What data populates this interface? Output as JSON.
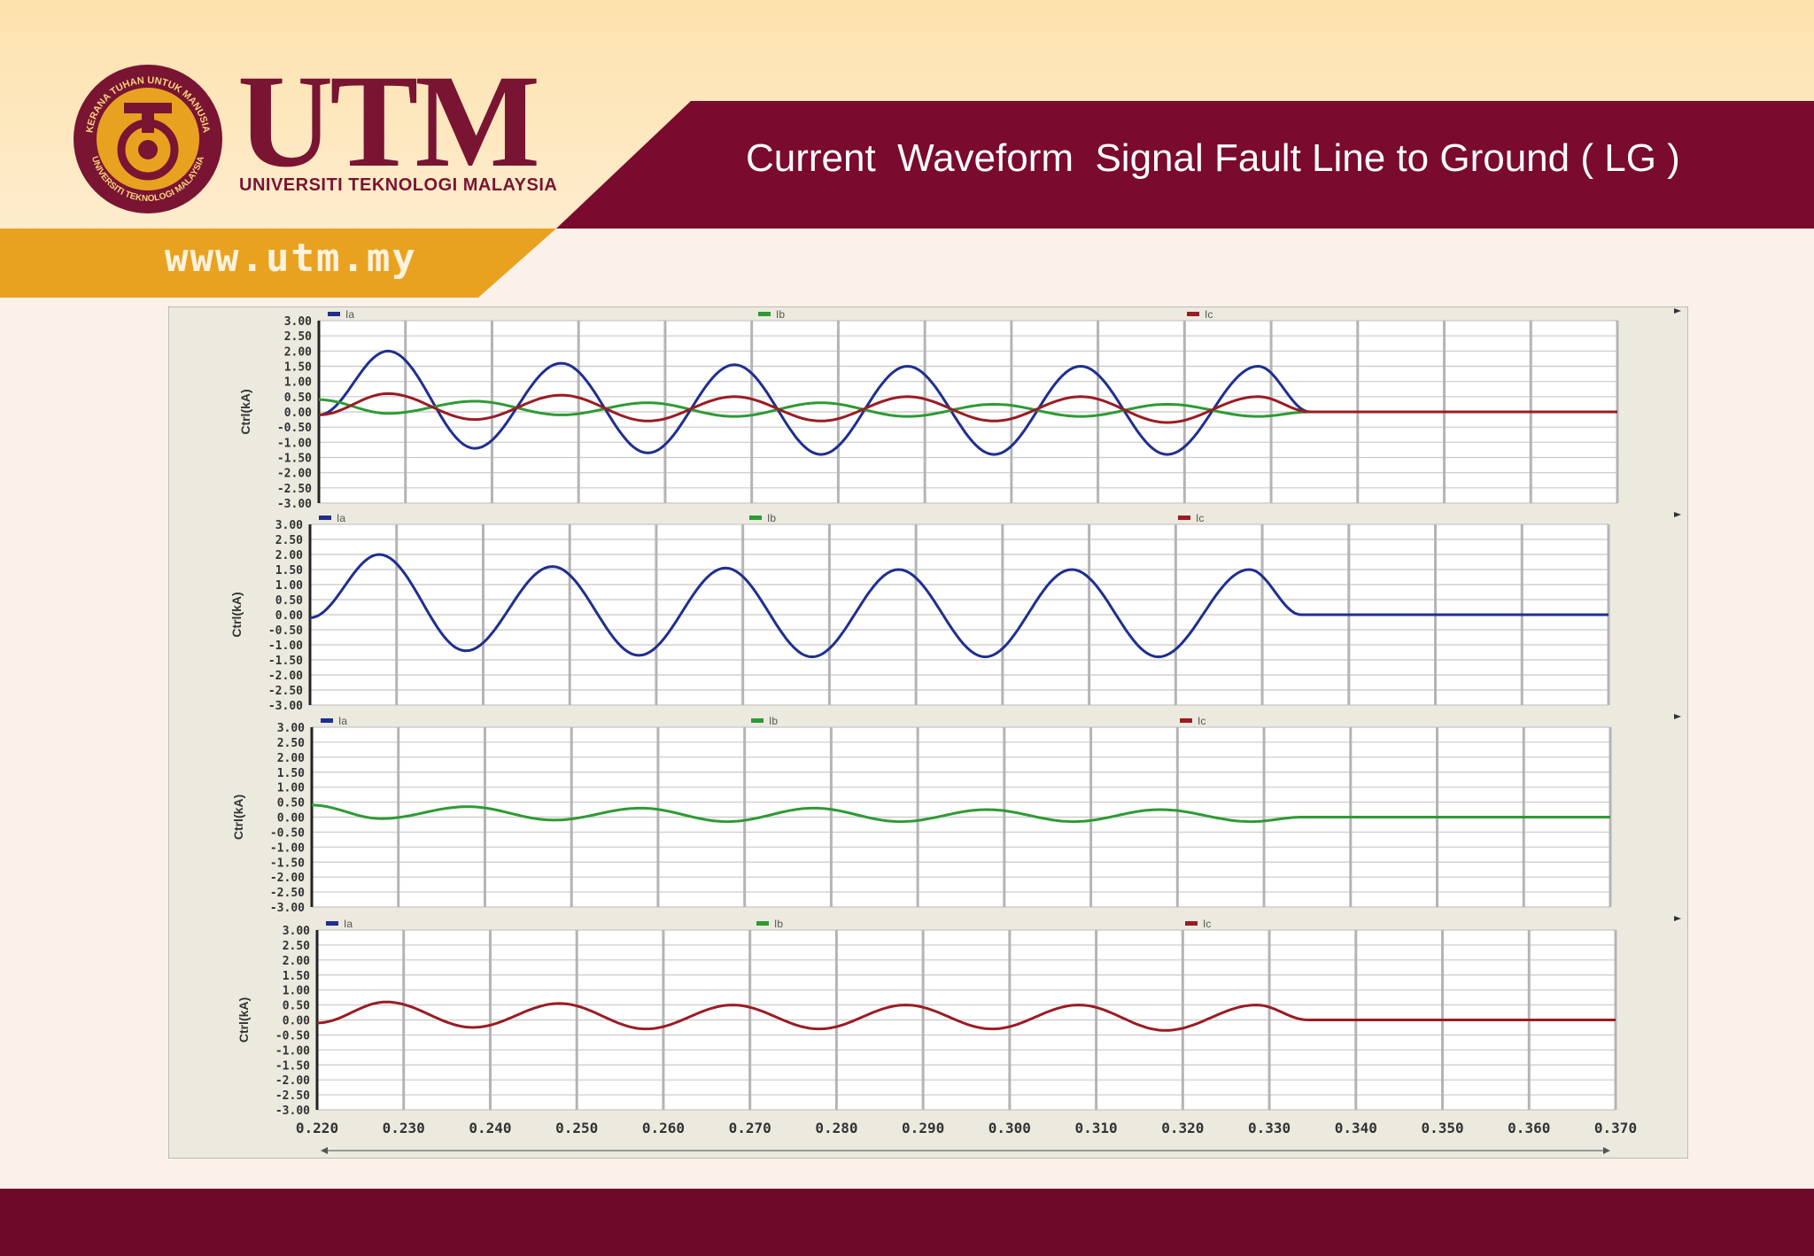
{
  "slide": {
    "title": "Current  Waveform  Signal Fault Line to Ground ( LG )",
    "brand_word": "UTM",
    "brand_sub": "UNIVERSITI TEKNOLOGI MALAYSIA",
    "seal_text_top": "KERANA TUHAN UNTUK MANUSIA",
    "seal_text_bottom": "UNIVERSITI TEKNOLOGI MALAYSIA",
    "url": "www.utm.my"
  },
  "colors": {
    "maroon": "#7a0a2e",
    "gold": "#e9a220",
    "cream": "#fde6b8",
    "ia": "#1f2f8f",
    "ib": "#2e9a34",
    "ic": "#9a1c24"
  },
  "chart_data": [
    {
      "type": "line",
      "ylabel": "Ctrl(kA)",
      "legend": [
        "Ia",
        "Ib",
        "Ic"
      ],
      "x_ticks": [],
      "y_ticks": [
        "3.00",
        "2.50",
        "2.00",
        "1.50",
        "1.00",
        "0.50",
        "0.00",
        "-0.50",
        "-1.00",
        "-1.50",
        "-2.00",
        "-2.50",
        "-3.00"
      ],
      "xlim": [
        0.22,
        0.37
      ],
      "ylim": [
        -3,
        3
      ],
      "grid": true,
      "legend_position": "top",
      "series": [
        {
          "name": "Ia",
          "color": "#1f2f8f",
          "x": [
            0.22,
            0.228,
            0.238,
            0.248,
            0.258,
            0.268,
            0.278,
            0.288,
            0.298,
            0.308,
            0.318,
            0.3285,
            0.3345,
            0.37
          ],
          "y": [
            -0.1,
            2.0,
            -1.2,
            1.6,
            -1.35,
            1.55,
            -1.4,
            1.5,
            -1.4,
            1.5,
            -1.4,
            1.5,
            0.0,
            0.0
          ]
        },
        {
          "name": "Ib",
          "color": "#2e9a34",
          "x": [
            0.22,
            0.228,
            0.238,
            0.248,
            0.258,
            0.268,
            0.278,
            0.288,
            0.298,
            0.308,
            0.318,
            0.3285,
            0.3345,
            0.37
          ],
          "y": [
            0.4,
            -0.05,
            0.35,
            -0.1,
            0.3,
            -0.15,
            0.3,
            -0.15,
            0.25,
            -0.15,
            0.25,
            -0.15,
            0.0,
            0.0
          ]
        },
        {
          "name": "Ic",
          "color": "#9a1c24",
          "x": [
            0.22,
            0.228,
            0.238,
            0.248,
            0.258,
            0.268,
            0.278,
            0.288,
            0.298,
            0.308,
            0.318,
            0.3285,
            0.3345,
            0.37
          ],
          "y": [
            -0.1,
            0.6,
            -0.25,
            0.55,
            -0.3,
            0.5,
            -0.3,
            0.5,
            -0.3,
            0.5,
            -0.35,
            0.5,
            0.0,
            0.0
          ]
        }
      ]
    },
    {
      "type": "line",
      "ylabel": "Ctrl(kA)",
      "legend": [
        "Ia",
        "Ib",
        "Ic"
      ],
      "x_ticks": [],
      "y_ticks": [
        "3.00",
        "2.50",
        "2.00",
        "1.50",
        "1.00",
        "0.50",
        "0.00",
        "-0.50",
        "-1.00",
        "-1.50",
        "-2.00",
        "-2.50",
        "-3.00"
      ],
      "xlim": [
        0.22,
        0.37
      ],
      "ylim": [
        -3,
        3
      ],
      "grid": true,
      "legend_position": "top",
      "series": [
        {
          "name": "Ia",
          "color": "#1f2f8f",
          "x": [
            0.22,
            0.228,
            0.238,
            0.248,
            0.258,
            0.268,
            0.278,
            0.288,
            0.298,
            0.308,
            0.318,
            0.3285,
            0.3345,
            0.37
          ],
          "y": [
            -0.1,
            2.0,
            -1.2,
            1.6,
            -1.35,
            1.55,
            -1.4,
            1.5,
            -1.4,
            1.5,
            -1.4,
            1.5,
            0.0,
            0.0
          ]
        }
      ]
    },
    {
      "type": "line",
      "ylabel": "Ctrl(kA)",
      "legend": [
        "Ia",
        "Ib",
        "Ic"
      ],
      "x_ticks": [],
      "y_ticks": [
        "3.00",
        "2.50",
        "2.00",
        "1.50",
        "1.00",
        "0.50",
        "0.00",
        "-0.50",
        "-1.00",
        "-1.50",
        "-2.00",
        "-2.50",
        "-3.00"
      ],
      "xlim": [
        0.22,
        0.37
      ],
      "ylim": [
        -3,
        3
      ],
      "grid": true,
      "legend_position": "top",
      "series": [
        {
          "name": "Ib",
          "color": "#2e9a34",
          "x": [
            0.22,
            0.228,
            0.238,
            0.248,
            0.258,
            0.268,
            0.278,
            0.288,
            0.298,
            0.308,
            0.318,
            0.3285,
            0.3345,
            0.37
          ],
          "y": [
            0.4,
            -0.05,
            0.35,
            -0.1,
            0.3,
            -0.15,
            0.3,
            -0.15,
            0.25,
            -0.15,
            0.25,
            -0.15,
            0.0,
            0.0
          ]
        }
      ]
    },
    {
      "type": "line",
      "ylabel": "Ctrl(kA)",
      "legend": [
        "Ia",
        "Ib",
        "Ic"
      ],
      "x_ticks": [
        "0.220",
        "0.230",
        "0.240",
        "0.250",
        "0.260",
        "0.270",
        "0.280",
        "0.290",
        "0.300",
        "0.310",
        "0.320",
        "0.330",
        "0.340",
        "0.350",
        "0.360",
        "0.370"
      ],
      "y_ticks": [
        "3.00",
        "2.50",
        "2.00",
        "1.50",
        "1.00",
        "0.50",
        "0.00",
        "-0.50",
        "-1.00",
        "-1.50",
        "-2.00",
        "-2.50",
        "-3.00"
      ],
      "xlim": [
        0.22,
        0.37
      ],
      "ylim": [
        -3,
        3
      ],
      "grid": true,
      "legend_position": "top",
      "series": [
        {
          "name": "Ic",
          "color": "#9a1c24",
          "x": [
            0.22,
            0.228,
            0.238,
            0.248,
            0.258,
            0.268,
            0.278,
            0.288,
            0.298,
            0.308,
            0.318,
            0.3285,
            0.3345,
            0.37
          ],
          "y": [
            -0.1,
            0.6,
            -0.25,
            0.55,
            -0.3,
            0.5,
            -0.3,
            0.5,
            -0.3,
            0.5,
            -0.35,
            0.5,
            0.0,
            0.0
          ]
        }
      ]
    }
  ]
}
